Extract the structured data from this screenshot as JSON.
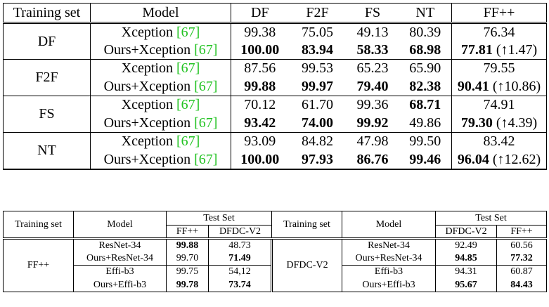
{
  "table1": {
    "headers": {
      "training_set": "Training set",
      "model": "Model",
      "df": "DF",
      "f2f": "F2F",
      "fs": "FS",
      "nt": "NT",
      "ffpp": "FF++"
    },
    "ref": "[67]",
    "groups": [
      {
        "train": "DF",
        "rows": [
          {
            "model": "Xception",
            "df": "99.38",
            "f2f": "75.05",
            "fs": "49.13",
            "nt": "80.39",
            "ffpp": "76.34",
            "delta": ""
          },
          {
            "model": "Ours+Xception",
            "df": "100.00",
            "f2f": "83.94",
            "fs": "58.33",
            "nt": "68.98",
            "ffpp": "77.81",
            "delta": "(↑1.47)"
          }
        ]
      },
      {
        "train": "F2F",
        "rows": [
          {
            "model": "Xception",
            "df": "87.56",
            "f2f": "99.53",
            "fs": "65.23",
            "nt": "65.90",
            "ffpp": "79.55",
            "delta": ""
          },
          {
            "model": "Ours+Xception",
            "df": "99.88",
            "f2f": "99.97",
            "fs": "79.40",
            "nt": "82.38",
            "ffpp": "90.41",
            "delta": "(↑10.86)"
          }
        ]
      },
      {
        "train": "FS",
        "rows": [
          {
            "model": "Xception",
            "df": "70.12",
            "f2f": "61.70",
            "fs": "99.36",
            "nt": "68.71",
            "ffpp": "74.91",
            "delta": ""
          },
          {
            "model": "Ours+Xception",
            "df": "93.42",
            "f2f": "74.00",
            "fs": "99.92",
            "nt": "49.86",
            "ffpp": "79.30",
            "delta": "(↑4.39)"
          }
        ]
      },
      {
        "train": "NT",
        "rows": [
          {
            "model": "Xception",
            "df": "93.09",
            "f2f": "84.82",
            "fs": "47.98",
            "nt": "99.50",
            "ffpp": "83.42",
            "delta": ""
          },
          {
            "model": "Ours+Xception",
            "df": "100.00",
            "f2f": "97.93",
            "fs": "86.76",
            "nt": "99.46",
            "ffpp": "96.04",
            "delta": "(↑12.62)"
          }
        ]
      }
    ]
  },
  "table2": {
    "headers": {
      "training_set": "Training set",
      "model": "Model",
      "test_set": "Test Set",
      "left_cols": [
        "FF++",
        "DFDC-V2"
      ],
      "right_cols": [
        "DFDC-V2",
        "FF++"
      ]
    },
    "left": {
      "train": "FF++",
      "rows": [
        {
          "model": "ResNet-34",
          "a": "99.88",
          "b": "48.73"
        },
        {
          "model": "Ours+ResNet-34",
          "a": "99.70",
          "b": "71.49"
        },
        {
          "model": "Effi-b3",
          "a": "99.75",
          "b": "54,12"
        },
        {
          "model": "Ours+Effi-b3",
          "a": "99.78",
          "b": "73.74"
        }
      ]
    },
    "right": {
      "train": "DFDC-V2",
      "rows": [
        {
          "model": "ResNet-34",
          "a": "92.49",
          "b": "60.56"
        },
        {
          "model": "Ours+ResNet-34",
          "a": "94.85",
          "b": "77.32"
        },
        {
          "model": "Effi-b3",
          "a": "94.31",
          "b": "60.87"
        },
        {
          "model": "Ours+Effi-b3",
          "a": "95.67",
          "b": "84.43"
        }
      ]
    }
  }
}
